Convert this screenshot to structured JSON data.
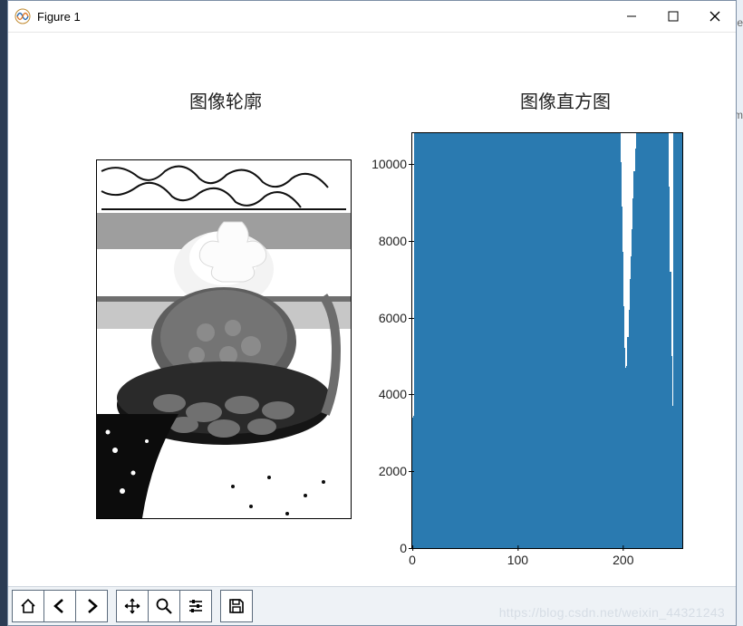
{
  "window": {
    "title": "Figure 1",
    "controls": {
      "minimize": "minimize",
      "maximize": "maximize",
      "close": "close"
    }
  },
  "subplots": {
    "left": {
      "title": "图像轮廓",
      "type": "contour-image",
      "description": "grayscale edge/contour image of a dessert bowl"
    },
    "right": {
      "title": "图像直方图",
      "type": "bar",
      "bar_color": "#2a7ab0",
      "background_color": "#ffffff",
      "border_color": "#000000",
      "xlim": [
        0,
        256
      ],
      "ylim": [
        0,
        10800
      ],
      "xticks": [
        0,
        100,
        200
      ],
      "yticks": [
        0,
        2000,
        4000,
        6000,
        8000,
        10000
      ],
      "label_fontsize": 14,
      "values": [
        3400,
        3450,
        10800,
        10800,
        10800,
        10800,
        10800,
        10800,
        10800,
        10800,
        10800,
        10800,
        10800,
        10800,
        10800,
        10800,
        10800,
        10800,
        10800,
        10800,
        10800,
        10800,
        10800,
        10800,
        10800,
        10800,
        10800,
        10800,
        10800,
        10800,
        10800,
        10800,
        10800,
        10800,
        10800,
        10800,
        10800,
        10800,
        10800,
        10800,
        10800,
        10800,
        10800,
        10800,
        10800,
        10800,
        10800,
        10800,
        10800,
        10800,
        10800,
        10800,
        10800,
        10800,
        10800,
        10800,
        10800,
        10800,
        10800,
        10800,
        10800,
        10800,
        10800,
        10800,
        10800,
        10800,
        10800,
        10800,
        10800,
        10800,
        10800,
        10800,
        10800,
        10800,
        10800,
        10800,
        10800,
        10800,
        10800,
        10800,
        10800,
        10800,
        10800,
        10800,
        10800,
        10800,
        10800,
        10800,
        10800,
        10800,
        10800,
        10800,
        10800,
        10800,
        10800,
        10800,
        10800,
        10800,
        10800,
        10800,
        10800,
        10800,
        10800,
        10800,
        10800,
        10800,
        10800,
        10800,
        10800,
        10800,
        10800,
        10800,
        10800,
        10800,
        10800,
        10800,
        10800,
        10800,
        10800,
        10800,
        10800,
        10800,
        10800,
        10800,
        10800,
        10800,
        10800,
        10800,
        10800,
        10800,
        10800,
        10800,
        10800,
        10800,
        10800,
        10800,
        10800,
        10800,
        10800,
        10800,
        10800,
        10800,
        10800,
        10800,
        10800,
        10800,
        10800,
        10800,
        10800,
        10800,
        10800,
        10800,
        10800,
        10800,
        10800,
        10800,
        10800,
        10800,
        10800,
        10800,
        10800,
        10800,
        10800,
        10800,
        10800,
        10800,
        10800,
        10800,
        10800,
        10800,
        10800,
        10800,
        10800,
        10800,
        10800,
        10800,
        10800,
        10800,
        10800,
        10800,
        10800,
        10800,
        10800,
        10800,
        10800,
        10800,
        10800,
        10800,
        10800,
        10800,
        10800,
        10800,
        10800,
        10800,
        10800,
        10800,
        10800,
        10050,
        8900,
        7700,
        6300,
        5200,
        4700,
        4750,
        5500,
        6200,
        7000,
        7600,
        8300,
        9100,
        9800,
        10400,
        10800,
        10800,
        10800,
        10800,
        10800,
        10800,
        10800,
        10800,
        10800,
        10800,
        10800,
        10800,
        10800,
        10800,
        10800,
        10800,
        10800,
        10800,
        10800,
        10800,
        10800,
        10800,
        10800,
        10800,
        10800,
        10800,
        10800,
        10800,
        10800,
        10800,
        10800,
        9400,
        7200,
        5000,
        3700,
        10800,
        10800,
        10800,
        10800,
        10800,
        10800,
        10800,
        10800,
        10800
      ]
    }
  },
  "toolbar": {
    "home": "home",
    "back": "back",
    "forward": "forward",
    "pan": "pan",
    "zoom": "zoom",
    "subplots": "subplots",
    "save": "save"
  },
  "watermark": "https://blog.csdn.net/weixin_44321243",
  "desktop_hints": {
    "be": "be",
    "m": "m"
  }
}
